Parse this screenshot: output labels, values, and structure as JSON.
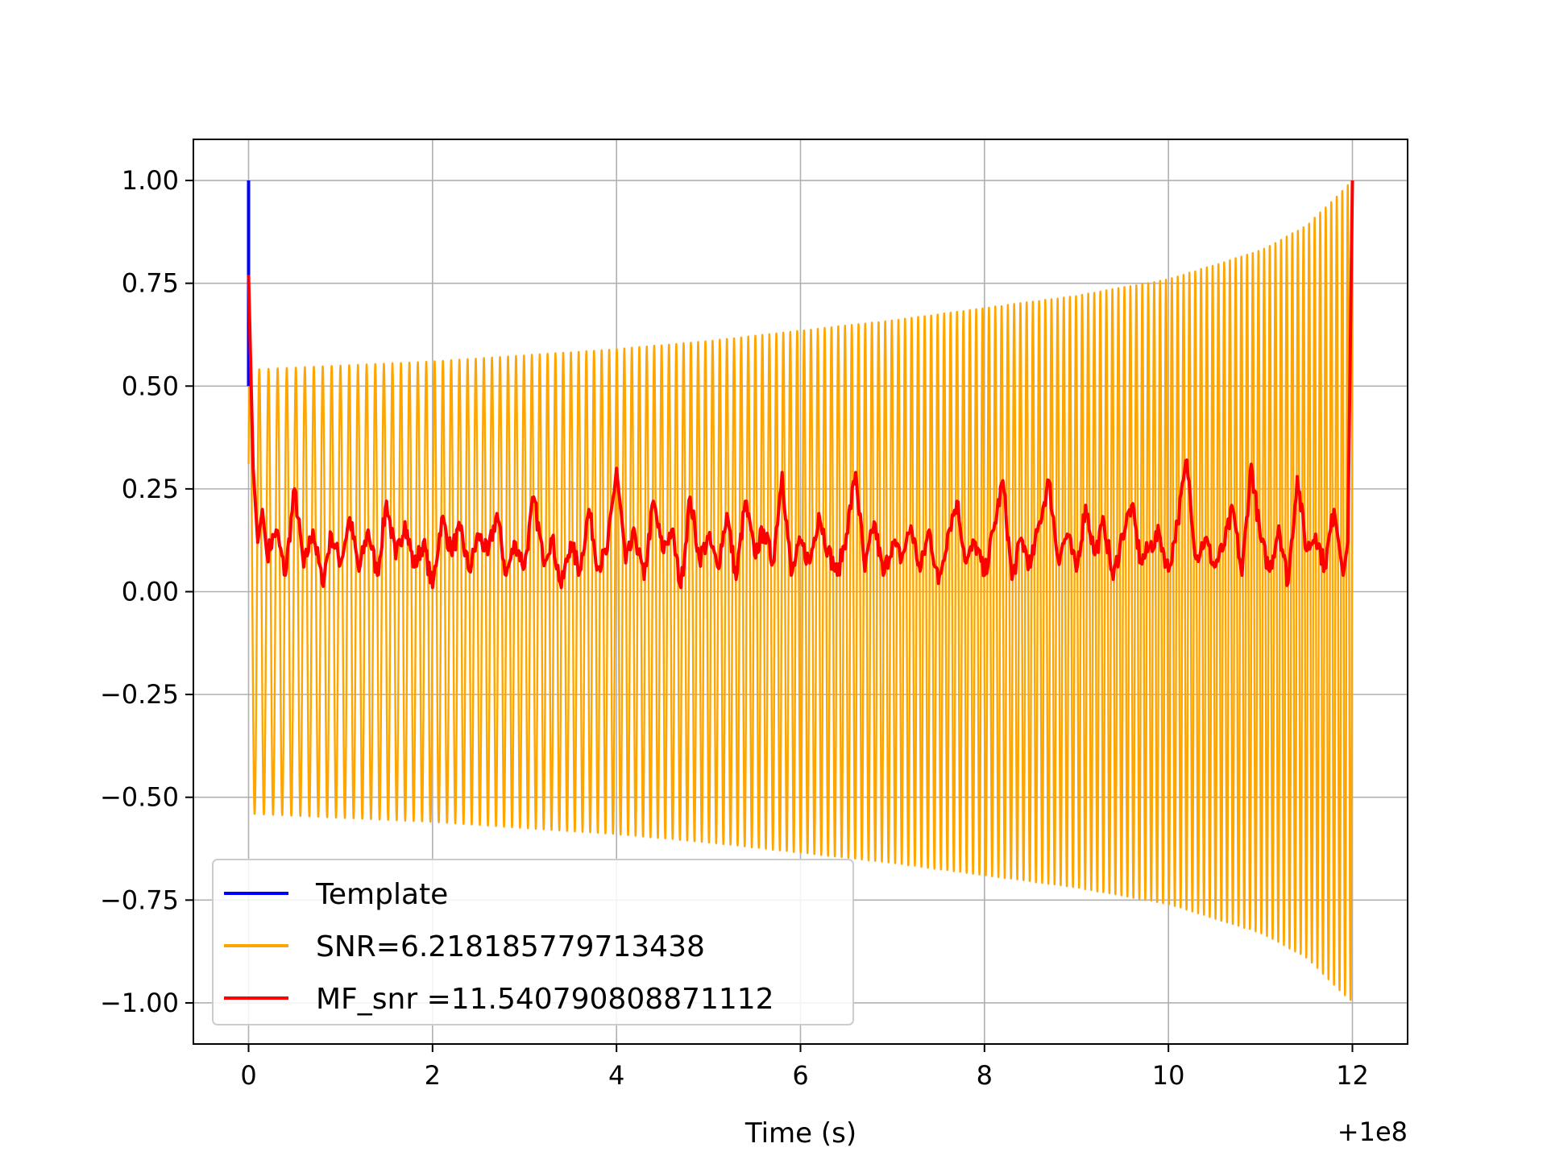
{
  "chart_data": {
    "type": "line",
    "title": "",
    "xlabel": "Time (s)",
    "ylabel": "",
    "x_offset_label": "+1e8",
    "xlim": [
      -0.6,
      12.6
    ],
    "ylim": [
      -1.1,
      1.1
    ],
    "grid": true,
    "x_ticks": [
      0,
      2,
      4,
      6,
      8,
      10,
      12
    ],
    "x_tick_labels": [
      "0",
      "2",
      "4",
      "6",
      "8",
      "10",
      "12"
    ],
    "y_ticks": [
      1.0,
      0.75,
      0.5,
      0.25,
      0.0,
      -0.25,
      -0.5,
      -0.75,
      -1.0
    ],
    "y_tick_labels": [
      "1.00",
      "0.75",
      "0.50",
      "0.25",
      "0.00",
      "−0.25",
      "−0.50",
      "−0.75",
      "−1.00"
    ],
    "legend_position": "lower-left",
    "series": [
      {
        "name": "Template",
        "color": "#0000ff",
        "x": [
          0.0,
          0.0
        ],
        "values": [
          0.5,
          1.0
        ]
      },
      {
        "name": "SNR=6.218185779713438",
        "color": "#ffa500",
        "kind": "chirp",
        "t_start": 0.0,
        "t_end": 12.0,
        "start_value": 0.31,
        "envelope_x": [
          0.0,
          1.0,
          2.0,
          3.0,
          4.0,
          5.0,
          6.0,
          7.0,
          8.0,
          9.0,
          10.0,
          11.0,
          11.5,
          12.0
        ],
        "envelope_y": [
          0.54,
          0.55,
          0.56,
          0.575,
          0.59,
          0.61,
          0.635,
          0.66,
          0.69,
          0.72,
          0.76,
          0.83,
          0.89,
          1.0
        ],
        "approx_cycles": 160
      },
      {
        "name": "MF_snr =11.540790808871112",
        "color": "#ff0000",
        "x": [
          0.0,
          0.05,
          0.1,
          0.15,
          0.2,
          0.3,
          0.4,
          0.5,
          0.6,
          0.7,
          0.8,
          0.9,
          1.0,
          1.1,
          1.2,
          1.3,
          1.4,
          1.5,
          1.6,
          1.7,
          1.8,
          1.9,
          2.0,
          2.1,
          2.2,
          2.3,
          2.4,
          2.5,
          2.6,
          2.7,
          2.8,
          2.9,
          3.0,
          3.1,
          3.2,
          3.3,
          3.4,
          3.5,
          3.6,
          3.7,
          3.8,
          3.9,
          4.0,
          4.1,
          4.2,
          4.3,
          4.4,
          4.5,
          4.6,
          4.7,
          4.8,
          4.9,
          5.0,
          5.1,
          5.2,
          5.3,
          5.4,
          5.5,
          5.6,
          5.7,
          5.8,
          5.9,
          6.0,
          6.1,
          6.2,
          6.3,
          6.4,
          6.5,
          6.6,
          6.7,
          6.8,
          6.9,
          7.0,
          7.1,
          7.2,
          7.3,
          7.4,
          7.5,
          7.6,
          7.7,
          7.8,
          7.9,
          8.0,
          8.1,
          8.2,
          8.3,
          8.4,
          8.5,
          8.6,
          8.7,
          8.8,
          8.9,
          9.0,
          9.1,
          9.2,
          9.3,
          9.4,
          9.5,
          9.6,
          9.7,
          9.8,
          9.9,
          10.0,
          10.1,
          10.2,
          10.3,
          10.4,
          10.5,
          10.6,
          10.7,
          10.8,
          10.9,
          11.0,
          11.1,
          11.2,
          11.3,
          11.4,
          11.5,
          11.6,
          11.7,
          11.8,
          11.9,
          11.95,
          12.0
        ],
        "values": [
          0.77,
          0.3,
          0.12,
          0.2,
          0.09,
          0.15,
          0.04,
          0.25,
          0.06,
          0.15,
          0.02,
          0.14,
          0.07,
          0.18,
          0.05,
          0.15,
          0.04,
          0.22,
          0.08,
          0.17,
          0.06,
          0.12,
          0.01,
          0.18,
          0.1,
          0.15,
          0.05,
          0.14,
          0.09,
          0.19,
          0.04,
          0.12,
          0.06,
          0.23,
          0.08,
          0.13,
          0.01,
          0.12,
          0.05,
          0.2,
          0.06,
          0.1,
          0.3,
          0.07,
          0.14,
          0.03,
          0.22,
          0.1,
          0.15,
          0.01,
          0.23,
          0.08,
          0.13,
          0.06,
          0.19,
          0.03,
          0.22,
          0.09,
          0.15,
          0.07,
          0.29,
          0.04,
          0.12,
          0.07,
          0.19,
          0.1,
          0.04,
          0.14,
          0.29,
          0.05,
          0.17,
          0.04,
          0.12,
          0.08,
          0.16,
          0.05,
          0.15,
          0.02,
          0.14,
          0.22,
          0.07,
          0.12,
          0.04,
          0.15,
          0.27,
          0.03,
          0.13,
          0.06,
          0.17,
          0.27,
          0.08,
          0.14,
          0.05,
          0.21,
          0.09,
          0.17,
          0.03,
          0.14,
          0.21,
          0.07,
          0.11,
          0.14,
          0.05,
          0.17,
          0.32,
          0.08,
          0.13,
          0.06,
          0.11,
          0.2,
          0.04,
          0.31,
          0.13,
          0.05,
          0.16,
          0.02,
          0.28,
          0.1,
          0.14,
          0.06,
          0.2,
          0.04,
          0.12,
          1.0
        ]
      }
    ]
  }
}
